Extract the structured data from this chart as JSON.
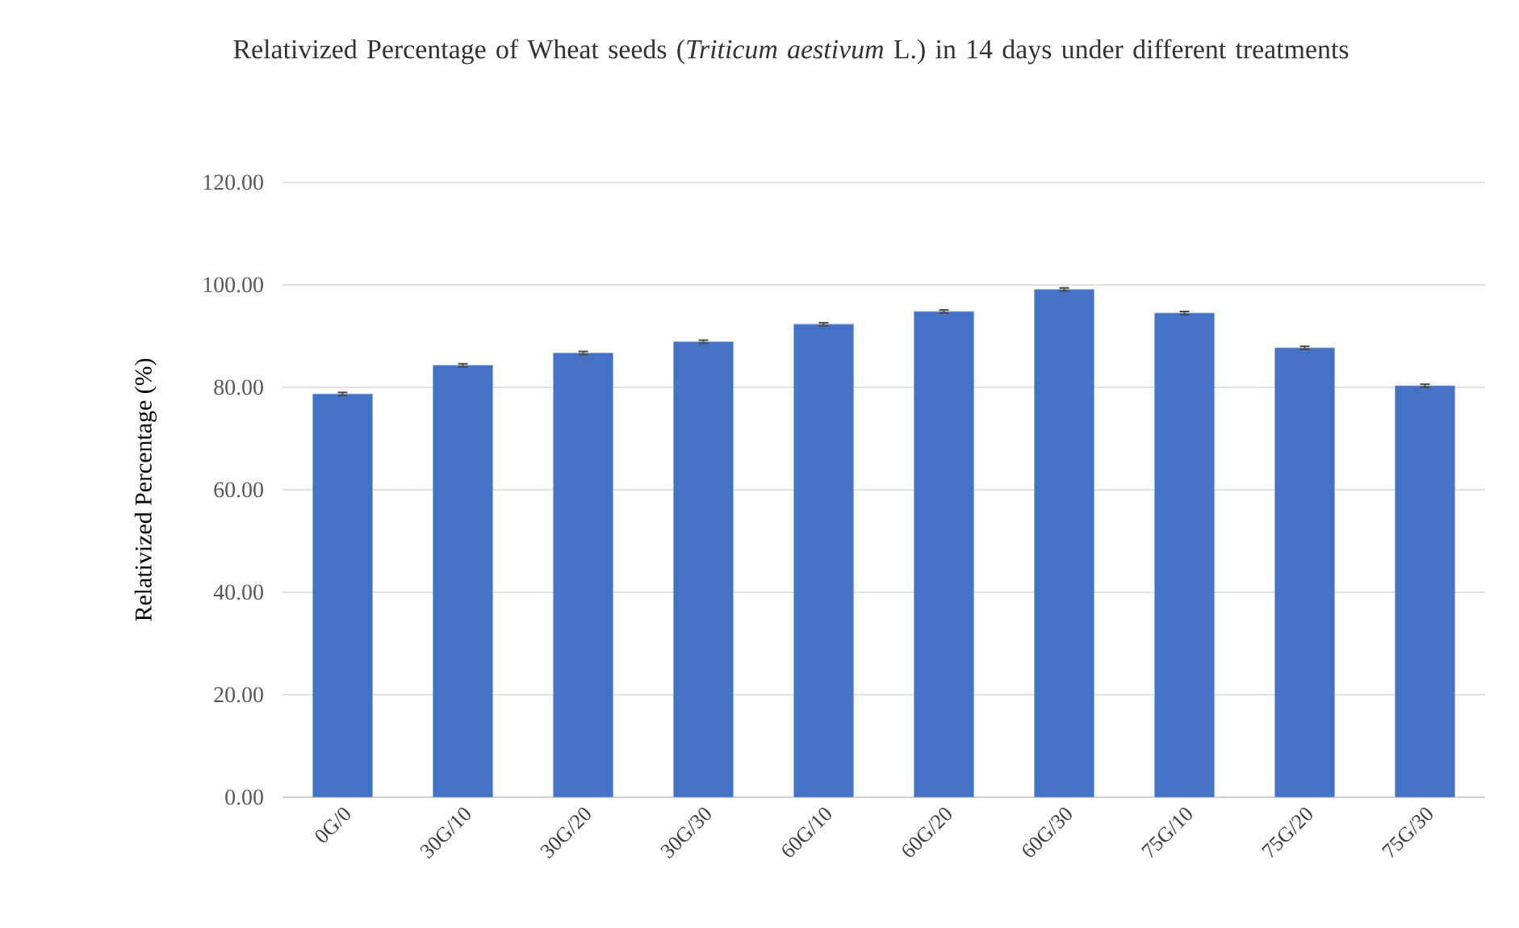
{
  "chart_data": {
    "type": "bar",
    "title": "Relativized Percentage of Wheat seeds (*Triticum aestivum* L.) in 14 days under different treatments",
    "ylabel": "Relativized Percentage (%)",
    "categories": [
      "0G/0",
      "30G/10",
      "30G/20",
      "30G/30",
      "60G/10",
      "60G/20",
      "60G/30",
      "75G/10",
      "75G/20",
      "75G/30"
    ],
    "values": [
      78.7,
      84.3,
      86.7,
      88.9,
      92.3,
      94.8,
      99.1,
      94.5,
      87.7,
      80.3
    ],
    "errors": [
      0.3,
      0.3,
      0.3,
      0.3,
      0.3,
      0.3,
      0.3,
      0.3,
      0.3,
      0.3
    ],
    "color": "#4472c4",
    "ylim": [
      0,
      120
    ],
    "yticks": [
      {
        "value": 0,
        "label": "0.00"
      },
      {
        "value": 20,
        "label": "20.00"
      },
      {
        "value": 40,
        "label": "40.00"
      },
      {
        "value": 60,
        "label": "60.00"
      },
      {
        "value": 80,
        "label": "80.00"
      },
      {
        "value": 100,
        "label": "100.00"
      },
      {
        "value": 120,
        "label": "120.00"
      }
    ],
    "grid": "y"
  }
}
